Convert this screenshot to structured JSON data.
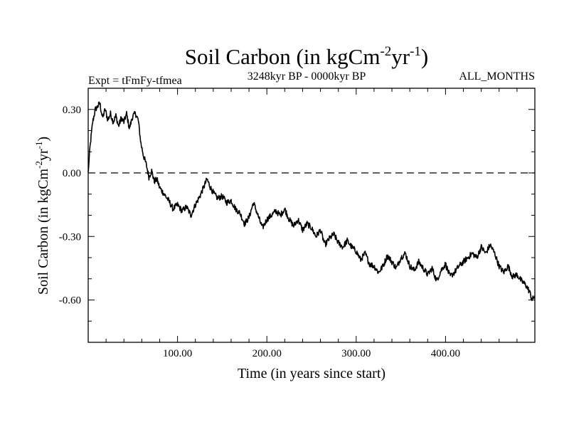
{
  "chart_data": {
    "type": "line",
    "title": {
      "main": "Soil Carbon (in kgCm",
      "sup1": "-2",
      "mid": "yr",
      "sup2": "-1",
      "end": ")"
    },
    "subtitle_left": "Expt = tFmFy-tfmea",
    "subtitle_center": "3248kyr BP - 0000kyr BP",
    "subtitle_right": "ALL_MONTHS",
    "xlabel": "Time (in years since start)",
    "ylabel": {
      "main": "Soil Carbon (in kgCm",
      "sup1": "-2",
      "mid": "yr",
      "sup2": "-1",
      "end": ")"
    },
    "xlim": [
      0,
      500
    ],
    "ylim": [
      -0.8,
      0.4
    ],
    "x_ticks": [
      100,
      200,
      300,
      400
    ],
    "x_tick_labels": [
      "100.00",
      "200.00",
      "300.00",
      "400.00"
    ],
    "y_ticks": [
      0.3,
      0.0,
      -0.3,
      -0.6
    ],
    "y_tick_labels": [
      "0.30",
      "0.00",
      "-0.30",
      "-0.60"
    ],
    "reference_line": {
      "y": 0.0,
      "style": "dashed"
    },
    "series": [
      {
        "name": "Soil Carbon",
        "x": [
          0,
          2,
          5,
          8,
          10,
          13,
          16,
          19,
          22,
          25,
          28,
          31,
          34,
          37,
          40,
          43,
          46,
          50,
          53,
          56,
          59,
          62,
          65,
          68,
          71,
          74,
          77,
          80,
          85,
          90,
          95,
          100,
          105,
          110,
          115,
          120,
          125,
          130,
          133,
          137,
          141,
          145,
          150,
          155,
          160,
          165,
          170,
          175,
          180,
          185,
          190,
          195,
          200,
          205,
          210,
          215,
          220,
          225,
          230,
          235,
          240,
          245,
          250,
          255,
          260,
          265,
          270,
          275,
          280,
          285,
          290,
          295,
          300,
          305,
          310,
          315,
          320,
          325,
          330,
          335,
          340,
          345,
          350,
          355,
          360,
          365,
          370,
          375,
          380,
          385,
          390,
          395,
          400,
          405,
          410,
          415,
          420,
          425,
          430,
          435,
          440,
          445,
          450,
          455,
          460,
          465,
          470,
          475,
          480,
          485,
          490,
          494,
          497,
          500
        ],
        "y": [
          0.0,
          0.12,
          0.24,
          0.3,
          0.31,
          0.33,
          0.26,
          0.3,
          0.25,
          0.28,
          0.24,
          0.27,
          0.22,
          0.26,
          0.24,
          0.28,
          0.21,
          0.27,
          0.28,
          0.25,
          0.14,
          0.08,
          0.04,
          -0.02,
          0.01,
          -0.04,
          -0.03,
          -0.07,
          -0.1,
          -0.13,
          -0.17,
          -0.15,
          -0.18,
          -0.16,
          -0.2,
          -0.15,
          -0.11,
          -0.06,
          -0.03,
          -0.07,
          -0.1,
          -0.12,
          -0.11,
          -0.14,
          -0.13,
          -0.17,
          -0.19,
          -0.24,
          -0.21,
          -0.14,
          -0.2,
          -0.26,
          -0.22,
          -0.2,
          -0.18,
          -0.2,
          -0.17,
          -0.22,
          -0.25,
          -0.22,
          -0.27,
          -0.24,
          -0.26,
          -0.3,
          -0.27,
          -0.34,
          -0.31,
          -0.29,
          -0.33,
          -0.35,
          -0.32,
          -0.35,
          -0.37,
          -0.41,
          -0.38,
          -0.43,
          -0.44,
          -0.47,
          -0.44,
          -0.39,
          -0.42,
          -0.45,
          -0.4,
          -0.38,
          -0.44,
          -0.46,
          -0.42,
          -0.45,
          -0.48,
          -0.45,
          -0.51,
          -0.46,
          -0.43,
          -0.49,
          -0.47,
          -0.44,
          -0.42,
          -0.4,
          -0.38,
          -0.4,
          -0.35,
          -0.38,
          -0.34,
          -0.38,
          -0.44,
          -0.47,
          -0.44,
          -0.49,
          -0.48,
          -0.51,
          -0.53,
          -0.56,
          -0.6,
          -0.58
        ]
      }
    ]
  }
}
